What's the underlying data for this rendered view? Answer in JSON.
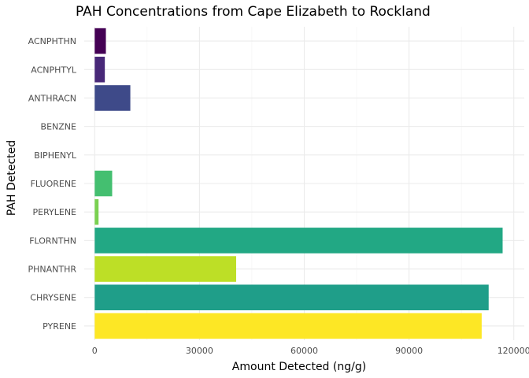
{
  "chart_data": {
    "type": "bar",
    "orientation": "horizontal",
    "title": "PAH Concentrations from Cape Elizabeth to Rockland",
    "xlabel": "Amount Detected (ng/g)",
    "ylabel": "PAH Detected",
    "xlim": [
      -3000,
      123000
    ],
    "x_ticks": [
      0,
      30000,
      60000,
      90000,
      120000
    ],
    "x_tick_labels": [
      "0",
      "30000",
      "60000",
      "90000",
      "120000"
    ],
    "grid": true,
    "legend": "none",
    "categories": [
      "ACNPHTHN",
      "ACNPHTYL",
      "ANTHRACN",
      "BENZNE",
      "BIPHENYL",
      "FLUORENE",
      "PERYLENE",
      "FLORNTHN",
      "PHNANTHR",
      "CHRYSENE",
      "PYRENE"
    ],
    "values": [
      3200,
      2900,
      10200,
      0,
      0,
      5000,
      1100,
      116800,
      40500,
      112800,
      110800
    ],
    "colors": [
      "#440154",
      "#482878",
      "#3e4a89",
      "#31688e",
      "#26828e",
      "#44bf70",
      "#7ad151",
      "#22a884",
      "#bddf26",
      "#1f9e89",
      "#fde725"
    ]
  }
}
